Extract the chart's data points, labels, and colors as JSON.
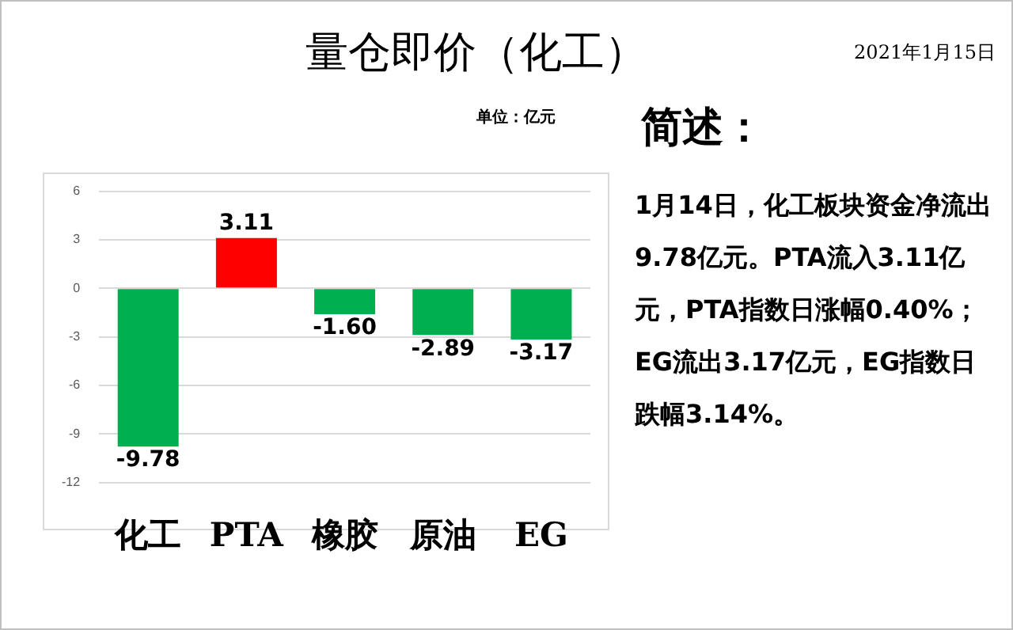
{
  "chart_data": {
    "type": "bar",
    "title": "量仓即价（化工）",
    "subtitle": "单位：亿元",
    "annotations": [
      "2021年1月15日",
      "简述：",
      "1月14日，化工板块资金净流出9.78亿元。PTA流入3.11亿元，PTA指数日涨幅0.40%；EG流出3.17亿元，EG指数日跌幅3.14%。"
    ],
    "categories": [
      "化工",
      "PTA",
      "橡胶",
      "原油",
      "EG"
    ],
    "values": [
      -9.78,
      3.11,
      -1.6,
      -2.89,
      -3.17
    ],
    "colors": [
      "#00b050",
      "#ff0000",
      "#00b050",
      "#00b050",
      "#00b050"
    ],
    "value_labels": [
      "-9.78",
      "3.11",
      "-1.60",
      "-2.89",
      "-3.17"
    ],
    "ylim": [
      -12,
      6
    ],
    "yticks": [
      -12,
      -9,
      -6,
      -3,
      0,
      3,
      6
    ],
    "grid": "y",
    "legend": false
  }
}
